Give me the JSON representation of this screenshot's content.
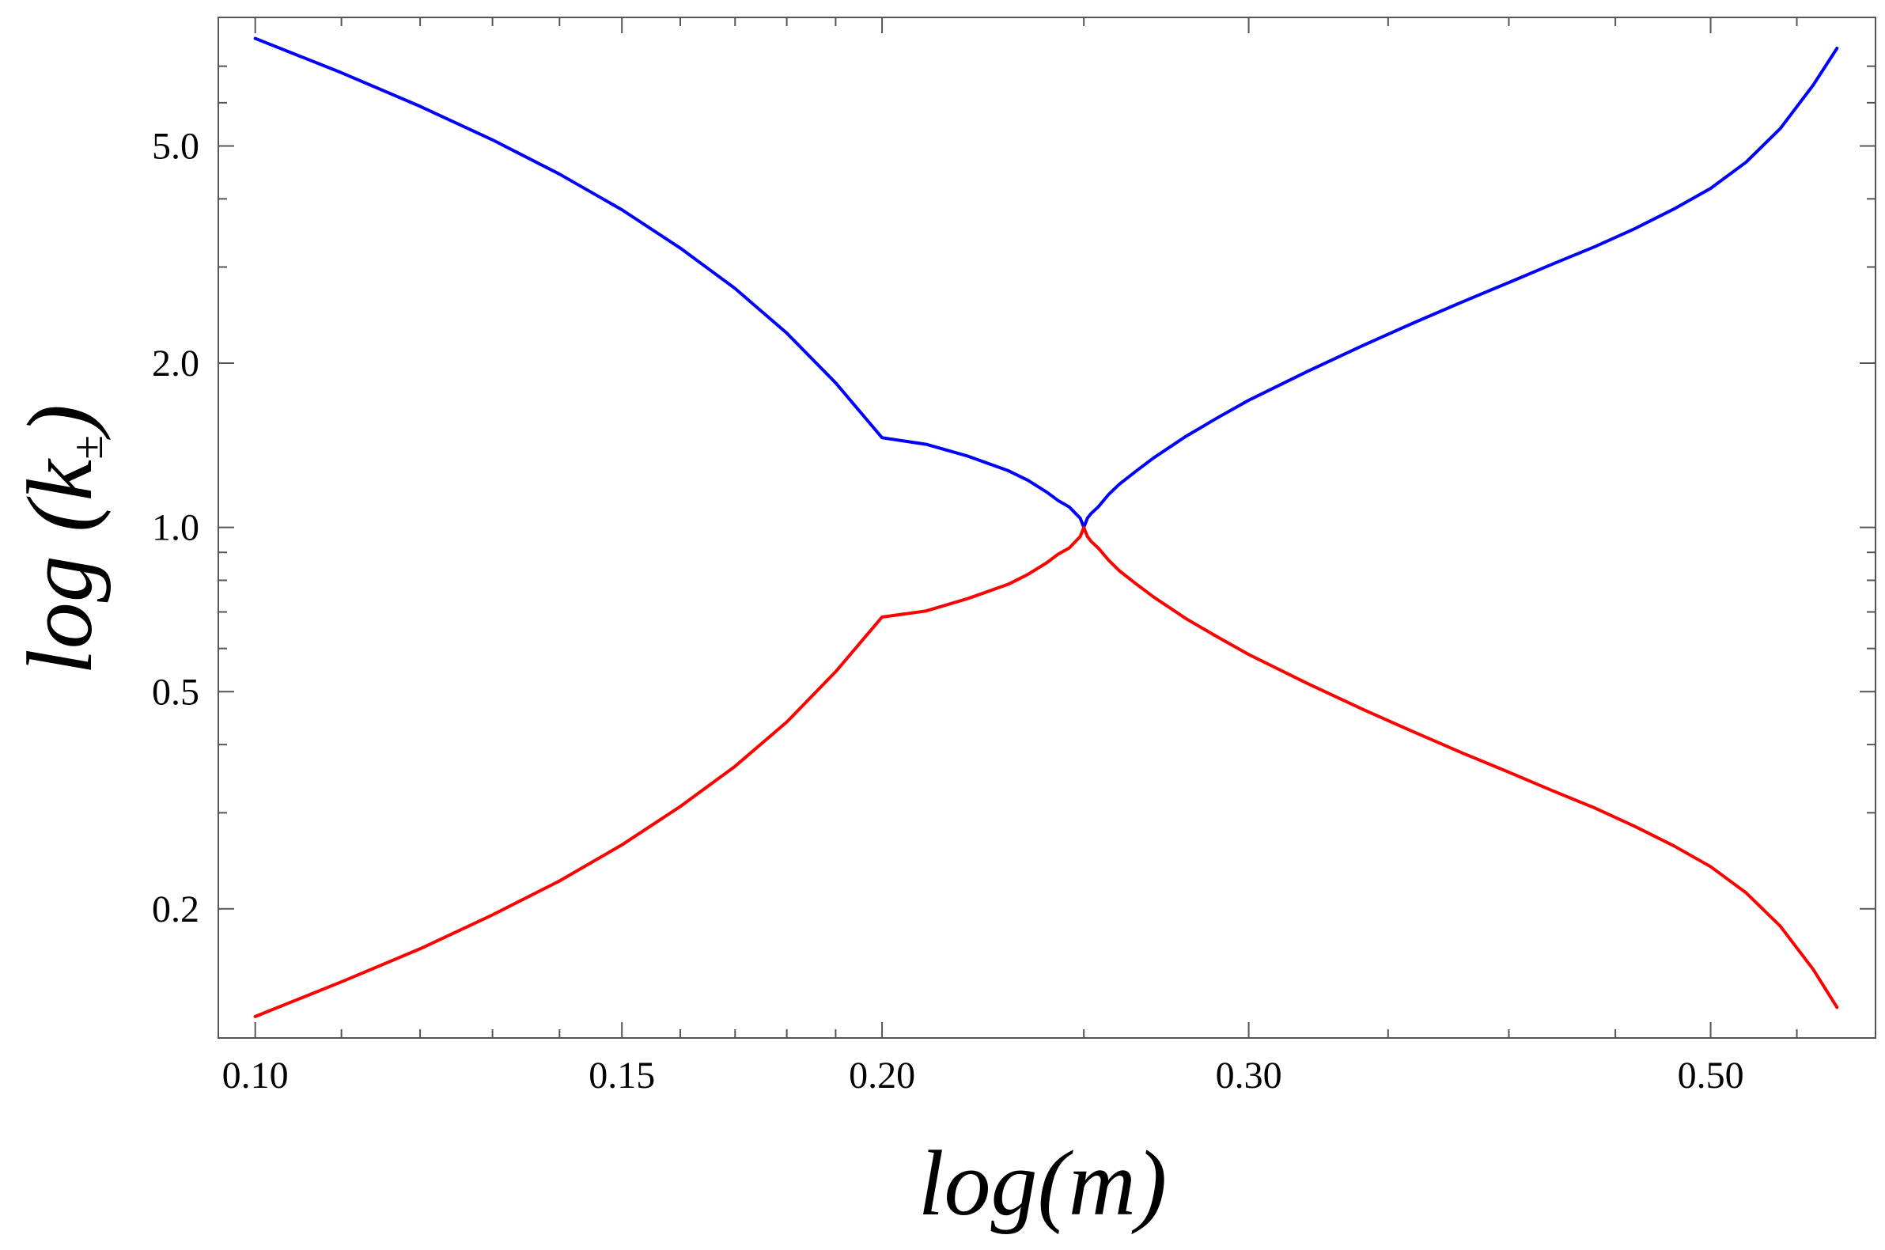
{
  "chart_data": {
    "type": "line",
    "title": "",
    "xlabel": "log(m)",
    "ylabel": {
      "prefix": "log (",
      "var": "k",
      "sub": "±",
      "suffix": ")"
    },
    "xscale": "log",
    "yscale": "log",
    "xlim": [
      0.096,
      0.6
    ],
    "ylim": [
      0.116,
      8.6
    ],
    "grid": false,
    "legend": "none",
    "xticks": {
      "major": [
        0.1,
        0.15,
        0.2,
        0.3,
        0.5
      ],
      "major_labels": [
        "0.10",
        "0.15",
        "0.20",
        "0.30",
        "0.50"
      ],
      "minor": [
        0.11,
        0.12,
        0.13,
        0.14,
        0.16,
        0.17,
        0.18,
        0.19,
        0.25,
        0.35,
        0.4,
        0.45,
        0.55
      ]
    },
    "yticks": {
      "major": [
        0.2,
        0.5,
        1.0,
        2.0,
        5.0
      ],
      "major_labels": [
        "0.2",
        "0.5",
        "1.0",
        "2.0",
        "5.0"
      ],
      "minor": [
        0.3,
        0.4,
        0.6,
        0.7,
        0.8,
        0.9,
        3.0,
        4.0,
        6.0,
        7.0
      ]
    },
    "series": [
      {
        "color": "#0000ff",
        "x": [
          0.1,
          0.11,
          0.12,
          0.13,
          0.14,
          0.15,
          0.16,
          0.17,
          0.18,
          0.19,
          0.2,
          0.21,
          0.22,
          0.23,
          0.235,
          0.24,
          0.243,
          0.246,
          0.248,
          0.249,
          0.25,
          0.251,
          0.252,
          0.254,
          0.257,
          0.26,
          0.265,
          0.27,
          0.28,
          0.29,
          0.3,
          0.32,
          0.34,
          0.36,
          0.38,
          0.4,
          0.42,
          0.44,
          0.46,
          0.48,
          0.5,
          0.52,
          0.54,
          0.56,
          0.575
        ],
        "y": [
          7.87,
          6.81,
          5.91,
          5.13,
          4.44,
          3.82,
          3.25,
          2.74,
          2.27,
          1.84,
          1.46,
          1.42,
          1.35,
          1.27,
          1.22,
          1.16,
          1.12,
          1.09,
          1.056,
          1.04,
          1.0,
          1.04,
          1.06,
          1.09,
          1.15,
          1.2,
          1.27,
          1.34,
          1.47,
          1.59,
          1.71,
          1.93,
          2.15,
          2.37,
          2.59,
          2.81,
          3.04,
          3.27,
          3.53,
          3.83,
          4.18,
          4.67,
          5.38,
          6.46,
          7.55
        ]
      },
      {
        "color": "#ff0000",
        "x": [
          0.1,
          0.11,
          0.12,
          0.13,
          0.14,
          0.15,
          0.16,
          0.17,
          0.18,
          0.19,
          0.2,
          0.21,
          0.22,
          0.23,
          0.235,
          0.24,
          0.243,
          0.246,
          0.248,
          0.249,
          0.25,
          0.251,
          0.252,
          0.254,
          0.257,
          0.26,
          0.265,
          0.27,
          0.28,
          0.29,
          0.3,
          0.32,
          0.34,
          0.36,
          0.38,
          0.4,
          0.42,
          0.44,
          0.46,
          0.48,
          0.5,
          0.52,
          0.54,
          0.56,
          0.575
        ],
        "y": [
          0.127,
          0.147,
          0.169,
          0.195,
          0.225,
          0.262,
          0.308,
          0.365,
          0.44,
          0.544,
          0.685,
          0.703,
          0.741,
          0.787,
          0.82,
          0.862,
          0.893,
          0.917,
          0.947,
          0.962,
          1.0,
          0.962,
          0.943,
          0.917,
          0.87,
          0.833,
          0.787,
          0.746,
          0.68,
          0.629,
          0.585,
          0.518,
          0.465,
          0.422,
          0.386,
          0.356,
          0.329,
          0.306,
          0.283,
          0.261,
          0.239,
          0.214,
          0.186,
          0.155,
          0.132
        ]
      }
    ]
  }
}
